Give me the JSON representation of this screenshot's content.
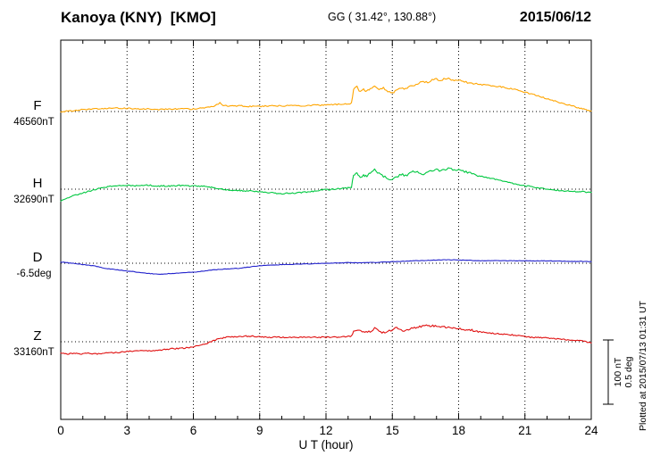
{
  "chart_data": {
    "type": "line",
    "title": "Kanoya (KNY)  [KMO]",
    "coords_label": "GG ( 31.42°, 130.88°)",
    "date": "2015/06/12",
    "xlabel": "U T (hour)",
    "x_range": [
      0,
      24
    ],
    "x_major_ticks": [
      0,
      3,
      6,
      9,
      12,
      15,
      18,
      21,
      24
    ],
    "grid": "vertical-dotted-every-3h",
    "legend_position": "left-of-each-trace",
    "scale_bar": {
      "nT": 100,
      "deg": 0.5,
      "label_nt": "100 nT",
      "label_deg": "0.5 deg"
    },
    "plotted_at": "Plotted at 2015/07/13 01:31 UT",
    "series": [
      {
        "name": "F",
        "unit": "nT",
        "baseline_value": 46560,
        "baseline_label": "46560nT",
        "color": "#FFA500",
        "points": [
          [
            0,
            0
          ],
          [
            0.5,
            1
          ],
          [
            1,
            3
          ],
          [
            1.5,
            4
          ],
          [
            2,
            5
          ],
          [
            2.5,
            5
          ],
          [
            3,
            5
          ],
          [
            3.5,
            4
          ],
          [
            4,
            4
          ],
          [
            4.5,
            3
          ],
          [
            5,
            4
          ],
          [
            5.5,
            4
          ],
          [
            6,
            4
          ],
          [
            6.5,
            6
          ],
          [
            6.8,
            8
          ],
          [
            7,
            9
          ],
          [
            7.2,
            14
          ],
          [
            7.35,
            9
          ],
          [
            7.6,
            9
          ],
          [
            8,
            9
          ],
          [
            8.5,
            8
          ],
          [
            9,
            8
          ],
          [
            9.5,
            9
          ],
          [
            10,
            9
          ],
          [
            10.5,
            9
          ],
          [
            11,
            9
          ],
          [
            11.5,
            10
          ],
          [
            12,
            10
          ],
          [
            12.5,
            11
          ],
          [
            13,
            12
          ],
          [
            13.15,
            13
          ],
          [
            13.25,
            34
          ],
          [
            13.4,
            38
          ],
          [
            13.55,
            30
          ],
          [
            13.7,
            34
          ],
          [
            13.85,
            31
          ],
          [
            14,
            36
          ],
          [
            14.2,
            40
          ],
          [
            14.4,
            34
          ],
          [
            14.6,
            37
          ],
          [
            14.8,
            31
          ],
          [
            15,
            28
          ],
          [
            15.2,
            34
          ],
          [
            15.4,
            37
          ],
          [
            15.6,
            35
          ],
          [
            15.8,
            39
          ],
          [
            16,
            41
          ],
          [
            16.2,
            44
          ],
          [
            16.4,
            47
          ],
          [
            16.6,
            45
          ],
          [
            16.8,
            49
          ],
          [
            17,
            51
          ],
          [
            17.2,
            48
          ],
          [
            17.4,
            52
          ],
          [
            17.6,
            50
          ],
          [
            17.8,
            48
          ],
          [
            18,
            49
          ],
          [
            18.2,
            46
          ],
          [
            18.4,
            45
          ],
          [
            18.6,
            44
          ],
          [
            18.8,
            43
          ],
          [
            19,
            42
          ],
          [
            19.3,
            41
          ],
          [
            19.6,
            40
          ],
          [
            20,
            38
          ],
          [
            20.3,
            36
          ],
          [
            20.6,
            34
          ],
          [
            21,
            30
          ],
          [
            21.3,
            27
          ],
          [
            21.6,
            24
          ],
          [
            22,
            20
          ],
          [
            22.3,
            17
          ],
          [
            22.6,
            14
          ],
          [
            23,
            10
          ],
          [
            23.3,
            7
          ],
          [
            23.6,
            4
          ],
          [
            24,
            1
          ]
        ]
      },
      {
        "name": "H",
        "unit": "nT",
        "baseline_value": 32690,
        "baseline_label": "32690nT",
        "color": "#00C840",
        "points": [
          [
            0,
            -18
          ],
          [
            0.3,
            -14
          ],
          [
            0.6,
            -10
          ],
          [
            1,
            -6
          ],
          [
            1.3,
            -3
          ],
          [
            1.6,
            0
          ],
          [
            2,
            3
          ],
          [
            2.3,
            5
          ],
          [
            2.6,
            6
          ],
          [
            3,
            6
          ],
          [
            3.3,
            5
          ],
          [
            3.6,
            6
          ],
          [
            4,
            6
          ],
          [
            4.3,
            5
          ],
          [
            4.6,
            5
          ],
          [
            5,
            5
          ],
          [
            5.3,
            6
          ],
          [
            5.6,
            5
          ],
          [
            6,
            5
          ],
          [
            6.3,
            5
          ],
          [
            6.6,
            4
          ],
          [
            7,
            2
          ],
          [
            7.3,
            0
          ],
          [
            7.6,
            -1
          ],
          [
            8,
            -2
          ],
          [
            8.3,
            -3
          ],
          [
            8.6,
            -3
          ],
          [
            9,
            -4
          ],
          [
            9.3,
            -5
          ],
          [
            9.6,
            -6
          ],
          [
            10,
            -7
          ],
          [
            10.3,
            -6
          ],
          [
            10.6,
            -6
          ],
          [
            11,
            -5
          ],
          [
            11.3,
            -4
          ],
          [
            11.6,
            -2
          ],
          [
            12,
            -1
          ],
          [
            12.3,
            0
          ],
          [
            12.6,
            1
          ],
          [
            13,
            2
          ],
          [
            13.15,
            3
          ],
          [
            13.25,
            22
          ],
          [
            13.4,
            25
          ],
          [
            13.55,
            18
          ],
          [
            13.7,
            22
          ],
          [
            13.85,
            20
          ],
          [
            14,
            26
          ],
          [
            14.2,
            30
          ],
          [
            14.4,
            24
          ],
          [
            14.6,
            20
          ],
          [
            14.8,
            17
          ],
          [
            15,
            14
          ],
          [
            15.2,
            19
          ],
          [
            15.4,
            23
          ],
          [
            15.6,
            21
          ],
          [
            15.8,
            25
          ],
          [
            16,
            28
          ],
          [
            16.2,
            26
          ],
          [
            16.4,
            24
          ],
          [
            16.6,
            26
          ],
          [
            16.8,
            28
          ],
          [
            17,
            30
          ],
          [
            17.2,
            28
          ],
          [
            17.4,
            31
          ],
          [
            17.6,
            33
          ],
          [
            17.8,
            30
          ],
          [
            18,
            30
          ],
          [
            18.2,
            28
          ],
          [
            18.4,
            26
          ],
          [
            18.6,
            24
          ],
          [
            18.8,
            22
          ],
          [
            19,
            20
          ],
          [
            19.3,
            18
          ],
          [
            19.6,
            16
          ],
          [
            20,
            12
          ],
          [
            20.3,
            10
          ],
          [
            20.6,
            8
          ],
          [
            21,
            5
          ],
          [
            21.3,
            4
          ],
          [
            21.6,
            2
          ],
          [
            22,
            0
          ],
          [
            22.3,
            -1
          ],
          [
            22.6,
            -2
          ],
          [
            23,
            -3
          ],
          [
            23.3,
            -4
          ],
          [
            23.6,
            -4
          ],
          [
            24,
            -5
          ]
        ]
      },
      {
        "name": "D",
        "unit": "deg",
        "baseline_value": -6.5,
        "baseline_label": "-6.5deg",
        "color": "#2222CC",
        "points": [
          [
            0,
            0.01
          ],
          [
            0.5,
            0
          ],
          [
            1,
            -0.01
          ],
          [
            1.5,
            -0.02
          ],
          [
            2,
            -0.04
          ],
          [
            2.5,
            -0.05
          ],
          [
            3,
            -0.06
          ],
          [
            3.5,
            -0.07
          ],
          [
            4,
            -0.08
          ],
          [
            4.5,
            -0.085
          ],
          [
            5,
            -0.08
          ],
          [
            5.5,
            -0.075
          ],
          [
            6,
            -0.07
          ],
          [
            6.5,
            -0.06
          ],
          [
            7,
            -0.05
          ],
          [
            7.5,
            -0.045
          ],
          [
            8,
            -0.04
          ],
          [
            8.5,
            -0.03
          ],
          [
            9,
            -0.02
          ],
          [
            9.5,
            -0.015
          ],
          [
            10,
            -0.01
          ],
          [
            10.5,
            -0.008
          ],
          [
            11,
            -0.005
          ],
          [
            11.5,
            -0.003
          ],
          [
            12,
            0
          ],
          [
            12.5,
            0.002
          ],
          [
            13,
            0.005
          ],
          [
            13.5,
            0.003
          ],
          [
            14,
            0.005
          ],
          [
            14.5,
            0.008
          ],
          [
            15,
            0.012
          ],
          [
            15.5,
            0.015
          ],
          [
            16,
            0.02
          ],
          [
            16.5,
            0.022
          ],
          [
            17,
            0.025
          ],
          [
            17.5,
            0.027
          ],
          [
            18,
            0.025
          ],
          [
            18.5,
            0.022
          ],
          [
            19,
            0.02
          ],
          [
            19.5,
            0.02
          ],
          [
            20,
            0.02
          ],
          [
            20.5,
            0.02
          ],
          [
            21,
            0.02
          ],
          [
            21.5,
            0.018
          ],
          [
            22,
            0.018
          ],
          [
            22.5,
            0.016
          ],
          [
            23,
            0.015
          ],
          [
            23.5,
            0.014
          ],
          [
            24,
            0.012
          ]
        ]
      },
      {
        "name": "Z",
        "unit": "nT",
        "baseline_value": 33160,
        "baseline_label": "33160nT",
        "color": "#E01010",
        "points": [
          [
            0,
            -18
          ],
          [
            0.3,
            -19
          ],
          [
            0.6,
            -18
          ],
          [
            1,
            -19
          ],
          [
            1.3,
            -18
          ],
          [
            1.6,
            -19
          ],
          [
            2,
            -18
          ],
          [
            2.5,
            -17
          ],
          [
            3,
            -15
          ],
          [
            3.5,
            -14
          ],
          [
            4,
            -14
          ],
          [
            4.5,
            -13
          ],
          [
            5,
            -11
          ],
          [
            5.5,
            -10
          ],
          [
            6,
            -8
          ],
          [
            6.5,
            -4
          ],
          [
            7,
            3
          ],
          [
            7.5,
            7
          ],
          [
            8,
            8
          ],
          [
            8.5,
            9
          ],
          [
            9,
            8
          ],
          [
            9.5,
            7
          ],
          [
            10,
            7
          ],
          [
            10.5,
            7
          ],
          [
            11,
            7
          ],
          [
            11.5,
            7
          ],
          [
            12,
            7
          ],
          [
            12.5,
            7
          ],
          [
            13,
            8
          ],
          [
            13.15,
            9
          ],
          [
            13.25,
            15
          ],
          [
            13.5,
            18
          ],
          [
            13.7,
            15
          ],
          [
            14,
            16
          ],
          [
            14.2,
            21
          ],
          [
            14.4,
            16
          ],
          [
            14.6,
            14
          ],
          [
            14.8,
            16
          ],
          [
            15,
            18
          ],
          [
            15.2,
            22
          ],
          [
            15.4,
            18
          ],
          [
            15.6,
            17
          ],
          [
            15.8,
            20
          ],
          [
            16,
            22
          ],
          [
            16.3,
            24
          ],
          [
            16.6,
            25
          ],
          [
            17,
            24
          ],
          [
            17.3,
            23
          ],
          [
            17.6,
            22
          ],
          [
            18,
            21
          ],
          [
            18.3,
            19
          ],
          [
            18.6,
            18
          ],
          [
            19,
            15
          ],
          [
            19.3,
            14
          ],
          [
            19.6,
            13
          ],
          [
            20,
            12
          ],
          [
            20.3,
            11
          ],
          [
            20.6,
            10
          ],
          [
            21,
            8
          ],
          [
            21.3,
            7
          ],
          [
            21.6,
            7
          ],
          [
            22,
            6
          ],
          [
            22.3,
            5
          ],
          [
            22.6,
            4
          ],
          [
            23,
            3
          ],
          [
            23.3,
            2
          ],
          [
            23.6,
            1
          ],
          [
            24,
            -2
          ]
        ]
      }
    ]
  }
}
